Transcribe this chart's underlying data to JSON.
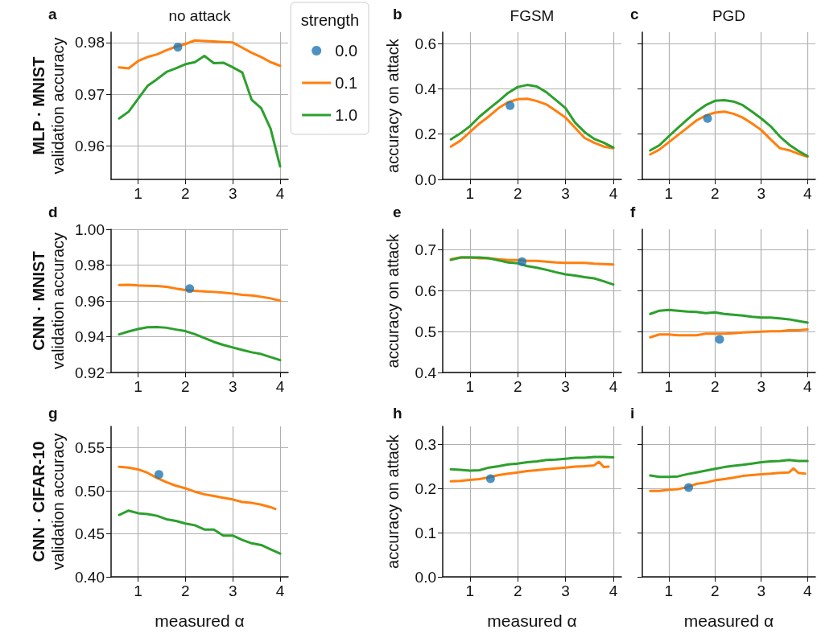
{
  "chart_data": [
    {
      "type": "line",
      "title": "no attack",
      "ylabel": "MLP · MNIST\nvalidation accuracy",
      "annotations": [
        "a"
      ],
      "legend": "top right",
      "legend_title": "strength",
      "grid": true,
      "xlim": [
        0.43,
        4.17
      ],
      "xticks": [
        1,
        2,
        3,
        4
      ],
      "ylim": [
        0.9535,
        0.982
      ],
      "yticks": [
        0.96,
        0.97,
        0.98
      ],
      "x": [
        0.6,
        0.8,
        1.0,
        1.2,
        1.4,
        1.6,
        1.8,
        2.0,
        2.2,
        2.4,
        2.6,
        2.8,
        3.0,
        3.2,
        3.4,
        3.6,
        3.8,
        4.0
      ],
      "series": [
        {
          "name": "0.0",
          "type": "scatter",
          "color": "#1f77b4",
          "x": [
            1.84
          ],
          "values": [
            0.9791
          ]
        },
        {
          "name": "0.1",
          "color": "#ff7f0e",
          "values": [
            0.9752,
            0.975,
            0.9764,
            0.9772,
            0.9777,
            0.9785,
            0.9792,
            0.9797,
            0.9804,
            0.9803,
            0.9802,
            0.9801,
            0.98,
            0.979,
            0.978,
            0.9772,
            0.9762,
            0.9755
          ]
        },
        {
          "name": "1.0",
          "color": "#2ca02c",
          "values": [
            0.9653,
            0.9666,
            0.9691,
            0.9716,
            0.9729,
            0.9743,
            0.975,
            0.9758,
            0.9762,
            0.9774,
            0.976,
            0.9761,
            0.9752,
            0.9742,
            0.9689,
            0.9673,
            0.9633,
            0.956
          ]
        }
      ]
    },
    {
      "type": "line",
      "title": "FGSM",
      "ylabel": "accuracy on attack",
      "annotations": [
        "b"
      ],
      "grid": true,
      "xlim": [
        0.43,
        4.17
      ],
      "xticks": [
        1,
        2,
        3,
        4
      ],
      "ylim": [
        0,
        0.65
      ],
      "yticks": [
        {
          "value": 0,
          "label": "0.0"
        },
        0.2,
        0.4,
        0.6
      ],
      "x": [
        0.6,
        0.8,
        1.0,
        1.2,
        1.4,
        1.6,
        1.8,
        2.0,
        2.2,
        2.4,
        2.6,
        2.8,
        3.0,
        3.2,
        3.4,
        3.6,
        3.8,
        4.0
      ],
      "series": [
        {
          "type": "scatter",
          "color": "#1f77b4",
          "x": [
            1.84
          ],
          "values": [
            0.326
          ]
        },
        {
          "color": "#ff7f0e",
          "values": [
            0.145,
            0.171,
            0.209,
            0.247,
            0.279,
            0.315,
            0.341,
            0.354,
            0.356,
            0.346,
            0.331,
            0.303,
            0.273,
            0.228,
            0.183,
            0.162,
            0.145,
            0.138
          ]
        },
        {
          "color": "#2ca02c",
          "values": [
            0.177,
            0.203,
            0.235,
            0.277,
            0.312,
            0.346,
            0.382,
            0.408,
            0.417,
            0.41,
            0.385,
            0.35,
            0.315,
            0.251,
            0.209,
            0.179,
            0.162,
            0.141
          ]
        }
      ]
    },
    {
      "type": "line",
      "title": "PGD",
      "annotations": [
        "c"
      ],
      "grid": true,
      "tick_labels": "x",
      "xlim": [
        0.43,
        4.17
      ],
      "xticks": [
        1,
        2,
        3,
        4
      ],
      "ylim": [
        0,
        0.65
      ],
      "yticks": [
        0,
        0.2,
        0.4,
        0.6
      ],
      "x": [
        0.6,
        0.8,
        1.0,
        1.2,
        1.4,
        1.6,
        1.8,
        2.0,
        2.2,
        2.4,
        2.6,
        2.8,
        3.0,
        3.2,
        3.4,
        3.6,
        3.8,
        4.0
      ],
      "series": [
        {
          "type": "scatter",
          "color": "#1f77b4",
          "x": [
            1.84
          ],
          "values": [
            0.269
          ]
        },
        {
          "color": "#ff7f0e",
          "values": [
            0.11,
            0.132,
            0.164,
            0.196,
            0.228,
            0.26,
            0.282,
            0.295,
            0.299,
            0.29,
            0.273,
            0.247,
            0.218,
            0.177,
            0.138,
            0.129,
            0.113,
            0.1
          ]
        },
        {
          "color": "#2ca02c",
          "values": [
            0.128,
            0.151,
            0.19,
            0.228,
            0.264,
            0.299,
            0.328,
            0.347,
            0.35,
            0.344,
            0.328,
            0.299,
            0.269,
            0.235,
            0.19,
            0.154,
            0.126,
            0.103
          ]
        }
      ]
    },
    {
      "type": "line",
      "ylabel": "CNN · MNIST\nvalidation accuracy",
      "annotations": [
        "d"
      ],
      "grid": true,
      "xlim": [
        0.43,
        4.17
      ],
      "xticks": [
        1,
        2,
        3,
        4
      ],
      "ylim": [
        0.92,
        1.0
      ],
      "yticks": [
        {
          "value": 0.92,
          "label": "0.92"
        },
        {
          "value": 0.94,
          "label": "0.94"
        },
        {
          "value": 0.96,
          "label": "0.96"
        },
        {
          "value": 0.98,
          "label": "0.98"
        },
        {
          "value": 1.0,
          "label": "1.00"
        }
      ],
      "x": [
        0.6,
        0.8,
        1.0,
        1.2,
        1.4,
        1.6,
        1.8,
        2.0,
        2.2,
        2.4,
        2.6,
        2.8,
        3.0,
        3.2,
        3.4,
        3.6,
        3.8,
        4.0
      ],
      "series": [
        {
          "type": "scatter",
          "color": "#1f77b4",
          "x": [
            2.09
          ],
          "values": [
            0.9669
          ]
        },
        {
          "color": "#ff7f0e",
          "values": [
            0.9689,
            0.969,
            0.9686,
            0.9684,
            0.9683,
            0.9679,
            0.9669,
            0.9661,
            0.9656,
            0.9653,
            0.965,
            0.9646,
            0.9641,
            0.9634,
            0.963,
            0.9623,
            0.9614,
            0.9601
          ]
        },
        {
          "color": "#2ca02c",
          "values": [
            0.9413,
            0.9429,
            0.9443,
            0.9453,
            0.9454,
            0.945,
            0.944,
            0.9431,
            0.9414,
            0.9393,
            0.9371,
            0.9354,
            0.934,
            0.9326,
            0.9313,
            0.9303,
            0.9286,
            0.9269
          ]
        }
      ]
    },
    {
      "type": "line",
      "ylabel": "accuracy on attack",
      "annotations": [
        "e"
      ],
      "grid": true,
      "xlim": [
        0.43,
        4.17
      ],
      "xticks": [
        1,
        2,
        3,
        4
      ],
      "ylim": [
        0.4,
        0.75
      ],
      "yticks": [
        0.4,
        0.5,
        0.6,
        0.7
      ],
      "x": [
        0.6,
        0.8,
        1.0,
        1.2,
        1.4,
        1.6,
        1.8,
        2.0,
        2.2,
        2.4,
        2.6,
        2.8,
        3.0,
        3.2,
        3.4,
        3.6,
        3.8,
        4.0
      ],
      "series": [
        {
          "type": "scatter",
          "color": "#1f77b4",
          "x": [
            2.09
          ],
          "values": [
            0.671
          ]
        },
        {
          "color": "#ff7f0e",
          "values": [
            0.677,
            0.681,
            0.681,
            0.679,
            0.679,
            0.677,
            0.675,
            0.675,
            0.673,
            0.673,
            0.671,
            0.669,
            0.668,
            0.668,
            0.668,
            0.666,
            0.665,
            0.664
          ]
        },
        {
          "color": "#2ca02c",
          "values": [
            0.675,
            0.681,
            0.681,
            0.681,
            0.679,
            0.674,
            0.669,
            0.667,
            0.66,
            0.656,
            0.651,
            0.645,
            0.64,
            0.637,
            0.633,
            0.63,
            0.623,
            0.615
          ]
        }
      ]
    },
    {
      "type": "line",
      "annotations": [
        "f"
      ],
      "grid": true,
      "tick_labels": "x",
      "xlim": [
        0.43,
        4.17
      ],
      "xticks": [
        1,
        2,
        3,
        4
      ],
      "ylim": [
        0.4,
        0.75
      ],
      "yticks": [
        0.4,
        0.5,
        0.6,
        0.7
      ],
      "x": [
        0.6,
        0.8,
        1.0,
        1.2,
        1.4,
        1.6,
        1.8,
        2.0,
        2.2,
        2.4,
        2.6,
        2.8,
        3.0,
        3.2,
        3.4,
        3.6,
        3.8,
        4.0
      ],
      "series": [
        {
          "type": "scatter",
          "color": "#1f77b4",
          "x": [
            2.1
          ],
          "values": [
            0.481
          ]
        },
        {
          "color": "#ff7f0e",
          "values": [
            0.486,
            0.493,
            0.493,
            0.491,
            0.491,
            0.491,
            0.495,
            0.495,
            0.495,
            0.496,
            0.498,
            0.499,
            0.5,
            0.501,
            0.501,
            0.503,
            0.503,
            0.505
          ]
        },
        {
          "color": "#2ca02c",
          "values": [
            0.543,
            0.551,
            0.553,
            0.551,
            0.549,
            0.548,
            0.545,
            0.547,
            0.543,
            0.541,
            0.539,
            0.536,
            0.534,
            0.534,
            0.532,
            0.53,
            0.526,
            0.522
          ]
        }
      ]
    },
    {
      "type": "line",
      "ylabel": "CNN · CIFAR-10\nvalidation accuracy",
      "xlabel": "measured α",
      "annotations": [
        "g"
      ],
      "grid": true,
      "xlim": [
        0.43,
        4.17
      ],
      "xticks": [
        1,
        2,
        3,
        4
      ],
      "ylim": [
        0.4,
        0.575
      ],
      "yticks": [
        {
          "value": 0.4,
          "label": "0.40"
        },
        {
          "value": 0.45,
          "label": "0.45"
        },
        {
          "value": 0.5,
          "label": "0.50"
        },
        {
          "value": 0.55,
          "label": "0.55"
        }
      ],
      "x": [
        0.6,
        0.8,
        1.0,
        1.2,
        1.4,
        1.6,
        1.8,
        2.0,
        2.2,
        2.4,
        2.6,
        2.8,
        3.0,
        3.2,
        3.4,
        3.6,
        3.8,
        4.0
      ],
      "series": [
        {
          "type": "scatter",
          "color": "#1f77b4",
          "x": [
            1.44
          ],
          "values": [
            0.519
          ]
        },
        {
          "color": "#ff7f0e",
          "x": [
            0.6,
            0.8,
            1.0,
            1.2,
            1.4,
            1.6,
            1.8,
            2.0,
            2.2,
            2.4,
            2.6,
            2.8,
            3.0,
            3.2,
            3.4,
            3.6,
            3.8,
            3.9
          ],
          "values": [
            0.528,
            0.527,
            0.525,
            0.521,
            0.515,
            0.51,
            0.506,
            0.503,
            0.499,
            0.496,
            0.494,
            0.492,
            0.49,
            0.487,
            0.486,
            0.484,
            0.481,
            0.479
          ]
        },
        {
          "color": "#2ca02c",
          "values": [
            0.472,
            0.477,
            0.474,
            0.473,
            0.471,
            0.467,
            0.465,
            0.462,
            0.46,
            0.455,
            0.455,
            0.448,
            0.448,
            0.443,
            0.439,
            0.437,
            0.432,
            0.427
          ]
        }
      ]
    },
    {
      "type": "line",
      "ylabel": "accuracy on attack",
      "xlabel": "measured α",
      "annotations": [
        "h"
      ],
      "grid": true,
      "xlim": [
        0.43,
        4.17
      ],
      "xticks": [
        1,
        2,
        3,
        4
      ],
      "ylim": [
        0,
        0.34
      ],
      "yticks": [
        {
          "value": 0,
          "label": "0.0"
        },
        0.1,
        0.2,
        0.3
      ],
      "x": [
        0.6,
        0.8,
        1.0,
        1.2,
        1.4,
        1.6,
        1.8,
        2.0,
        2.2,
        2.4,
        2.6,
        2.8,
        3.0,
        3.2,
        3.4,
        3.6,
        3.8,
        4.0
      ],
      "series": [
        {
          "type": "scatter",
          "color": "#1f77b4",
          "x": [
            1.43
          ],
          "values": [
            0.222
          ]
        },
        {
          "color": "#ff7f0e",
          "x": [
            0.6,
            0.8,
            1.0,
            1.2,
            1.4,
            1.6,
            1.8,
            2.0,
            2.2,
            2.4,
            2.6,
            2.8,
            3.0,
            3.2,
            3.4,
            3.6,
            3.7,
            3.8,
            3.9
          ],
          "values": [
            0.216,
            0.217,
            0.219,
            0.221,
            0.225,
            0.23,
            0.233,
            0.236,
            0.239,
            0.241,
            0.243,
            0.245,
            0.247,
            0.249,
            0.25,
            0.252,
            0.26,
            0.248,
            0.249
          ]
        },
        {
          "color": "#2ca02c",
          "values": [
            0.243,
            0.242,
            0.24,
            0.241,
            0.247,
            0.25,
            0.254,
            0.256,
            0.259,
            0.261,
            0.264,
            0.265,
            0.267,
            0.269,
            0.269,
            0.271,
            0.271,
            0.27
          ]
        }
      ]
    },
    {
      "type": "line",
      "xlabel": "measured α",
      "annotations": [
        "i"
      ],
      "grid": true,
      "tick_labels": "x",
      "xlim": [
        0.43,
        4.17
      ],
      "xticks": [
        1,
        2,
        3,
        4
      ],
      "ylim": [
        0,
        0.34
      ],
      "yticks": [
        0,
        0.1,
        0.2,
        0.3
      ],
      "x": [
        0.6,
        0.8,
        1.0,
        1.2,
        1.4,
        1.6,
        1.8,
        2.0,
        2.2,
        2.4,
        2.6,
        2.8,
        3.0,
        3.2,
        3.4,
        3.6,
        3.8,
        4.0
      ],
      "series": [
        {
          "type": "scatter",
          "color": "#1f77b4",
          "x": [
            1.43
          ],
          "values": [
            0.202
          ]
        },
        {
          "color": "#ff7f0e",
          "x": [
            0.6,
            0.8,
            1.0,
            1.2,
            1.4,
            1.6,
            1.8,
            2.0,
            2.2,
            2.4,
            2.6,
            2.8,
            3.0,
            3.2,
            3.4,
            3.6,
            3.7,
            3.8,
            3.95
          ],
          "values": [
            0.194,
            0.194,
            0.197,
            0.198,
            0.203,
            0.21,
            0.213,
            0.218,
            0.221,
            0.224,
            0.228,
            0.23,
            0.232,
            0.233,
            0.235,
            0.236,
            0.245,
            0.235,
            0.233
          ]
        },
        {
          "color": "#2ca02c",
          "values": [
            0.229,
            0.226,
            0.226,
            0.227,
            0.232,
            0.236,
            0.24,
            0.244,
            0.248,
            0.251,
            0.253,
            0.256,
            0.259,
            0.261,
            0.262,
            0.264,
            0.262,
            0.262
          ]
        }
      ]
    }
  ]
}
